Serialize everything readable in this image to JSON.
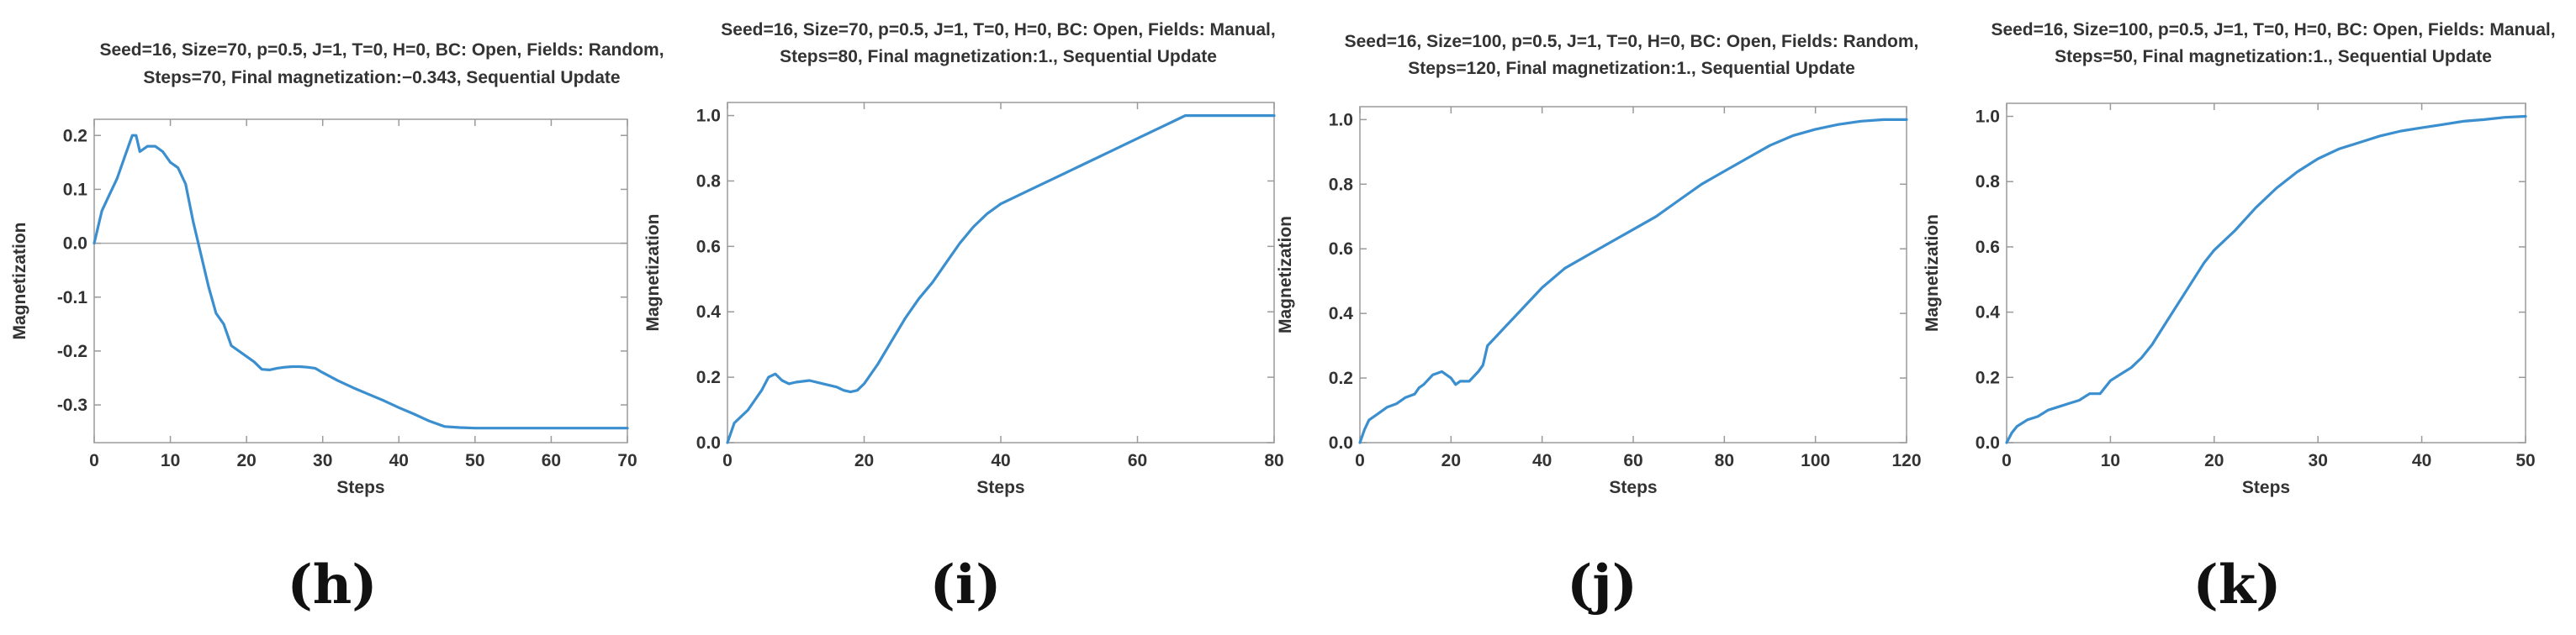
{
  "chart_data": [
    {
      "type": "line",
      "panel_label": "(h)",
      "title_lines": [
        "Seed=16, Size=70, p=0.5, J=1, T=0, H=0, BC: Open, Fields: Random,",
        "Steps=70, Final magnetization:−0.343, Sequential Update"
      ],
      "xlabel": "Steps",
      "ylabel": "Magnetization",
      "xlim": [
        0,
        70
      ],
      "ylim": [
        -0.37,
        0.23
      ],
      "xticks": [
        0,
        10,
        20,
        30,
        40,
        50,
        60,
        70
      ],
      "yticks": [
        -0.3,
        -0.2,
        -0.1,
        0.0,
        0.1,
        0.2
      ],
      "ytick_labels": [
        "-0.3",
        "-0.2",
        "-0.1",
        "0.0",
        "0.1",
        "0.2"
      ],
      "zero_line": true,
      "series": [
        {
          "name": "Magnetization",
          "color": "#3b8fcf",
          "x": [
            0,
            1,
            2,
            3,
            4,
            5,
            5.5,
            6,
            7,
            8,
            9,
            10,
            11,
            12,
            13,
            13.5,
            14,
            15,
            16,
            17,
            18,
            19,
            20,
            21,
            22,
            23,
            24,
            25,
            26,
            27,
            28,
            29,
            30,
            32,
            34,
            36,
            38,
            40,
            42,
            44,
            46,
            48,
            50,
            55,
            60,
            65,
            70
          ],
          "y": [
            0.0,
            0.06,
            0.09,
            0.12,
            0.16,
            0.2,
            0.2,
            0.17,
            0.18,
            0.18,
            0.17,
            0.15,
            0.14,
            0.11,
            0.04,
            0.01,
            -0.02,
            -0.08,
            -0.13,
            -0.15,
            -0.19,
            -0.2,
            -0.21,
            -0.22,
            -0.234,
            -0.235,
            -0.232,
            -0.23,
            -0.229,
            -0.229,
            -0.23,
            -0.232,
            -0.24,
            -0.255,
            -0.268,
            -0.28,
            -0.292,
            -0.305,
            -0.317,
            -0.33,
            -0.34,
            -0.342,
            -0.343,
            -0.343,
            -0.343,
            -0.343,
            -0.343
          ]
        }
      ]
    },
    {
      "type": "line",
      "panel_label": "(i)",
      "title_lines": [
        "Seed=16, Size=70, p=0.5, J=1, T=0, H=0, BC: Open, Fields: Manual,",
        "Steps=80, Final magnetization:1., Sequential Update"
      ],
      "xlabel": "Steps",
      "ylabel": "Magnetization",
      "xlim": [
        0,
        80
      ],
      "ylim": [
        0,
        1.04
      ],
      "xticks": [
        0,
        20,
        40,
        60,
        80
      ],
      "yticks": [
        0.0,
        0.2,
        0.4,
        0.6,
        0.8,
        1.0
      ],
      "ytick_labels": [
        "0.0",
        "0.2",
        "0.4",
        "0.6",
        "0.8",
        "1.0"
      ],
      "zero_line": false,
      "series": [
        {
          "name": "Magnetization",
          "color": "#3b8fcf",
          "x": [
            0,
            1,
            2,
            3,
            4,
            5,
            6,
            7,
            8,
            9,
            10,
            12,
            14,
            16,
            17,
            18,
            19,
            20,
            22,
            24,
            26,
            28,
            30,
            32,
            34,
            36,
            38,
            40,
            44,
            48,
            52,
            56,
            60,
            64,
            66,
            67,
            70,
            75,
            80
          ],
          "y": [
            0.0,
            0.06,
            0.08,
            0.1,
            0.13,
            0.16,
            0.2,
            0.21,
            0.19,
            0.18,
            0.185,
            0.19,
            0.18,
            0.17,
            0.16,
            0.155,
            0.16,
            0.18,
            0.24,
            0.31,
            0.38,
            0.44,
            0.49,
            0.55,
            0.61,
            0.66,
            0.7,
            0.73,
            0.77,
            0.81,
            0.85,
            0.89,
            0.93,
            0.97,
            0.99,
            1.0,
            1.0,
            1.0,
            1.0
          ]
        }
      ]
    },
    {
      "type": "line",
      "panel_label": "(j)",
      "title_lines": [
        "Seed=16, Size=100, p=0.5, J=1, T=0, H=0, BC: Open, Fields: Random,",
        "Steps=120, Final magnetization:1., Sequential Update"
      ],
      "xlabel": "Steps",
      "ylabel": "Magnetization",
      "xlim": [
        0,
        120
      ],
      "ylim": [
        0,
        1.04
      ],
      "xticks": [
        0,
        20,
        40,
        60,
        80,
        100,
        120
      ],
      "yticks": [
        0.0,
        0.2,
        0.4,
        0.6,
        0.8,
        1.0
      ],
      "ytick_labels": [
        "0.0",
        "0.2",
        "0.4",
        "0.6",
        "0.8",
        "1.0"
      ],
      "zero_line": false,
      "series": [
        {
          "name": "Magnetization",
          "color": "#3b8fcf",
          "x": [
            0,
            1,
            2,
            4,
            6,
            8,
            10,
            12,
            13,
            14,
            16,
            18,
            20,
            21,
            22,
            24,
            26,
            27,
            28,
            30,
            32,
            34,
            36,
            40,
            45,
            50,
            55,
            60,
            65,
            70,
            75,
            80,
            85,
            90,
            95,
            100,
            105,
            110,
            115,
            120
          ],
          "y": [
            0.0,
            0.04,
            0.07,
            0.09,
            0.11,
            0.12,
            0.14,
            0.15,
            0.17,
            0.18,
            0.21,
            0.22,
            0.2,
            0.18,
            0.19,
            0.19,
            0.22,
            0.24,
            0.3,
            0.33,
            0.36,
            0.39,
            0.42,
            0.48,
            0.54,
            0.58,
            0.62,
            0.66,
            0.7,
            0.75,
            0.8,
            0.84,
            0.88,
            0.92,
            0.95,
            0.97,
            0.985,
            0.995,
            1.0,
            1.0
          ]
        }
      ]
    },
    {
      "type": "line",
      "panel_label": "(k)",
      "title_lines": [
        "Seed=16, Size=100, p=0.5, J=1, T=0, H=0, BC: Open, Fields: Manual,",
        "Steps=50, Final magnetization:1., Sequential Update"
      ],
      "xlabel": "Steps",
      "ylabel": "Magnetization",
      "xlim": [
        0,
        50
      ],
      "ylim": [
        0,
        1.04
      ],
      "xticks": [
        0,
        10,
        20,
        30,
        40,
        50
      ],
      "yticks": [
        0.0,
        0.2,
        0.4,
        0.6,
        0.8,
        1.0
      ],
      "ytick_labels": [
        "0.0",
        "0.2",
        "0.4",
        "0.6",
        "0.8",
        "1.0"
      ],
      "zero_line": false,
      "series": [
        {
          "name": "Magnetization",
          "color": "#3b8fcf",
          "x": [
            0,
            0.5,
            1,
            2,
            3,
            4,
            5,
            6,
            7,
            8,
            9,
            10,
            11,
            12,
            13,
            14,
            15,
            16,
            17,
            18,
            19,
            20,
            21,
            22,
            24,
            26,
            28,
            30,
            32,
            34,
            36,
            38,
            40,
            42,
            44,
            46,
            48,
            50
          ],
          "y": [
            0.0,
            0.03,
            0.05,
            0.07,
            0.08,
            0.1,
            0.11,
            0.12,
            0.13,
            0.15,
            0.15,
            0.19,
            0.21,
            0.23,
            0.26,
            0.3,
            0.35,
            0.4,
            0.45,
            0.5,
            0.55,
            0.59,
            0.62,
            0.65,
            0.72,
            0.78,
            0.83,
            0.87,
            0.9,
            0.92,
            0.94,
            0.955,
            0.965,
            0.975,
            0.985,
            0.99,
            0.997,
            1.0
          ]
        }
      ]
    }
  ]
}
